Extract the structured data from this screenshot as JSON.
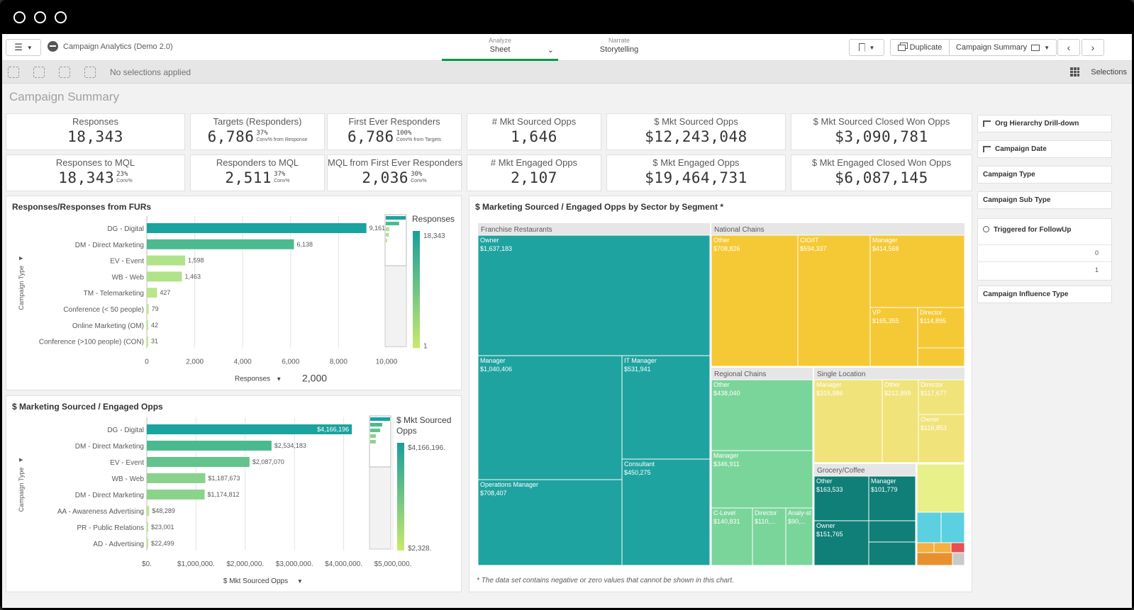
{
  "window": {
    "controls": [
      "close",
      "minimize",
      "maximize"
    ]
  },
  "topbar": {
    "app_title": "Campaign Analytics (Demo 2.0)",
    "tabs": [
      {
        "small": "Analyze",
        "big": "Sheet"
      },
      {
        "small": "Narrate",
        "big": "Storytelling"
      }
    ],
    "duplicate_label": "Duplicate",
    "sheet_select_label": "Campaign Summary"
  },
  "selection_bar": {
    "status": "No selections applied",
    "selections_label": "Selections"
  },
  "sheet_title": "Campaign Summary",
  "kpis": [
    {
      "label": "Responses",
      "value": "18,343",
      "pct": "",
      "caption": ""
    },
    {
      "label": "Targets (Responders)",
      "value": "6,786",
      "pct": "37%",
      "caption": "Conv% from Response"
    },
    {
      "label": "First Ever Responders",
      "value": "6,786",
      "pct": "100%",
      "caption": "Conv% from Targets"
    },
    {
      "label": "# Mkt Sourced Opps",
      "value": "1,646",
      "pct": "",
      "caption": ""
    },
    {
      "label": "$ Mkt Sourced Opps",
      "value": "$12,243,048",
      "pct": "",
      "caption": ""
    },
    {
      "label": "$ Mkt Sourced Closed Won Opps",
      "value": "$3,090,781",
      "pct": "",
      "caption": ""
    },
    {
      "label": "Responses to MQL",
      "value": "18,343",
      "pct": "23%",
      "caption": "Conv%"
    },
    {
      "label": "Responders to MQL",
      "value": "2,511",
      "pct": "37%",
      "caption": "Conv%"
    },
    {
      "label": "MQL from First Ever Responders",
      "value": "2,036",
      "pct": "30%",
      "caption": "Conv%"
    },
    {
      "label": "# Mkt Engaged Opps",
      "value": "2,107",
      "pct": "",
      "caption": ""
    },
    {
      "label": "$ Mkt Engaged Opps",
      "value": "$19,464,731",
      "pct": "",
      "caption": ""
    },
    {
      "label": "$ Mkt Engaged Closed Won Opps",
      "value": "$6,087,145",
      "pct": "",
      "caption": ""
    }
  ],
  "filters": [
    {
      "label": "Org Hierarchy Drill-down",
      "icon": "drilldown-icon"
    },
    {
      "label": "Campaign Date",
      "icon": "drilldown-icon"
    },
    {
      "label": "Campaign Type",
      "icon": ""
    },
    {
      "label": "Campaign Sub Type",
      "icon": ""
    },
    {
      "label": "Triggered for FollowUp",
      "icon": "search-icon",
      "values": [
        "0",
        "1"
      ]
    },
    {
      "label": "Campaign Influence Type",
      "icon": ""
    }
  ],
  "colors": {
    "accent_green": "#009845",
    "teal": "#1a9e9a",
    "green": "#7fd49a",
    "yellow": "#f5cd3c",
    "dark_teal": "#0e7c75"
  },
  "chart_data": [
    {
      "type": "bar",
      "orientation": "horizontal",
      "title": "Responses/Responses from FURs",
      "ylabel": "Campaign Type",
      "xlabel": "Responses",
      "categories": [
        "DG - Digital",
        "DM - Direct Marketing",
        "EV - Event",
        "WB - Web",
        "TM - Telemarketing",
        "Conference (< 50 people)",
        "Online Marketing (OM)",
        "Conference (>100 people) (CON)"
      ],
      "values": [
        9161,
        6138,
        1598,
        1463,
        427,
        79,
        42,
        31
      ],
      "value_labels": [
        "9,161",
        "6,138",
        "1,598",
        "1,463",
        "427",
        "79",
        "42",
        "31"
      ],
      "xticks": [
        "0",
        "2,000",
        "4,000",
        "6,000",
        "8,000",
        "10,000"
      ],
      "xlim": [
        0,
        10000
      ],
      "step_label": "2,000",
      "legend": {
        "title": "Responses",
        "max": "18,343",
        "min": "1"
      }
    },
    {
      "type": "bar",
      "orientation": "horizontal",
      "title": "$ Marketing Sourced / Engaged Opps",
      "ylabel": "Campaign Type",
      "xlabel": "$ Mkt Sourced Opps",
      "categories": [
        "DG - Digital",
        "DM - Direct Marketing",
        "EV - Event",
        "WB - Web",
        "DM - Direct Marketing",
        "AA - Awareness Advertising",
        "PR - Public Relations",
        "AD - Advertising"
      ],
      "values": [
        4166196,
        2534183,
        2087070,
        1187673,
        1174812,
        48289,
        23001,
        22499
      ],
      "value_labels": [
        "$4,166,196",
        "$2,534,183",
        "$2,087,070",
        "$1,187,673",
        "$1,174,812",
        "$48,289",
        "$23,001",
        "$22,499"
      ],
      "xticks": [
        "$0.",
        "$1,000,000.",
        "$2,000,000.",
        "$3,000,000.",
        "$4,000,000.",
        "$5,000,000."
      ],
      "xlim": [
        0,
        5000000
      ],
      "legend": {
        "title": "$ Mkt Sourced Opps",
        "max": "$4,166,196.",
        "min": "$2,328."
      }
    },
    {
      "type": "treemap",
      "title": "$ Marketing Sourced / Engaged Opps by Sector by Segment *",
      "footnote": "* The data set contains negative or zero values that cannot be shown in this chart.",
      "groups": [
        {
          "name": "Franchise Restaurants",
          "color": "#1fa3a0",
          "items": [
            {
              "label": "Owner",
              "value": "$1,637,183"
            },
            {
              "label": "Manager",
              "value": "$1,040,406"
            },
            {
              "label": "IT Manager",
              "value": "$531,941"
            },
            {
              "label": "Consultant",
              "value": "$450,275"
            },
            {
              "label": "Operations Manager",
              "value": "$708,407"
            }
          ]
        },
        {
          "name": "National Chains",
          "color": "#f5c935",
          "items": [
            {
              "label": "Other",
              "value": "$708,826"
            },
            {
              "label": "CIO/IT",
              "value": "$594,337"
            },
            {
              "label": "Manager",
              "value": "$414,568"
            },
            {
              "label": "VP",
              "value": "$165,355"
            },
            {
              "label": "Director",
              "value": "$114,895"
            }
          ]
        },
        {
          "name": "Regional Chains",
          "color": "#7ad59a",
          "items": [
            {
              "label": "Other",
              "value": "$438,040"
            },
            {
              "label": "Manager",
              "value": "$346,911"
            },
            {
              "label": "C-Level",
              "value": "$140,831"
            },
            {
              "label": "Director",
              "value": "$110,..."
            },
            {
              "label": "Analy-st",
              "value": "$90,..."
            }
          ]
        },
        {
          "name": "Single Location",
          "color": "#f0e37a",
          "items": [
            {
              "label": "Manager",
              "value": "$315,986"
            },
            {
              "label": "Other",
              "value": "$212,899"
            },
            {
              "label": "Director",
              "value": "$117,677"
            },
            {
              "label": "Owner",
              "value": "$116,853"
            }
          ]
        },
        {
          "name": "Grocery/Coffee",
          "color": "#0f7f78",
          "items": [
            {
              "label": "Other",
              "value": "$163,533"
            },
            {
              "label": "Manager",
              "value": "$101,779"
            },
            {
              "label": "Owner",
              "value": "$151,765"
            }
          ]
        }
      ]
    }
  ]
}
